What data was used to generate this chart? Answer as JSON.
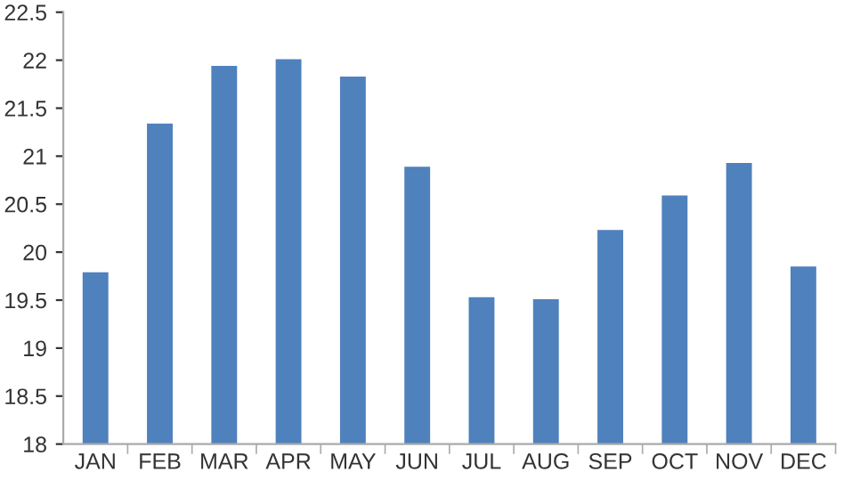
{
  "chart_data": {
    "type": "bar",
    "categories": [
      "JAN",
      "FEB",
      "MAR",
      "APR",
      "MAY",
      "JUN",
      "JUL",
      "AUG",
      "SEP",
      "OCT",
      "NOV",
      "DEC"
    ],
    "values": [
      19.79,
      21.34,
      21.94,
      22.01,
      21.83,
      20.89,
      19.53,
      19.51,
      20.23,
      20.59,
      20.93,
      19.85
    ],
    "color": "#4f81bd",
    "ylim": [
      18,
      22.5
    ],
    "yticks": [
      18,
      18.5,
      19,
      19.5,
      20,
      20.5,
      21,
      21.5,
      22,
      22.5
    ],
    "grid": false,
    "legend": false
  }
}
